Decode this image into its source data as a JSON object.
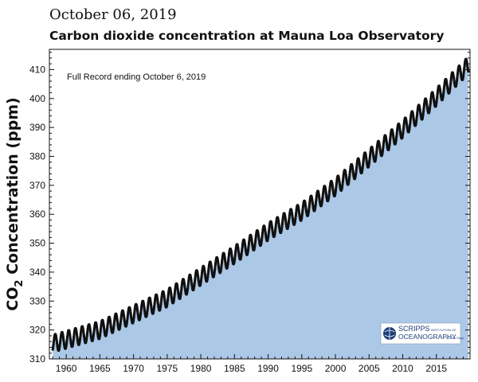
{
  "header": {
    "date": "October 06, 2019",
    "title": "Carbon dioxide concentration at Mauna Loa Observatory"
  },
  "chart_data": {
    "type": "area",
    "title": "Carbon dioxide concentration at Mauna Loa Observatory",
    "annotation": "Full Record ending October 6, 2019",
    "ylabel_parts": {
      "pre": "CO",
      "sub": "2",
      "post": " Concentration (ppm)"
    },
    "xlim": [
      1957.5,
      2020
    ],
    "ylim": [
      310,
      417
    ],
    "xticks": [
      "1960",
      "1965",
      "1970",
      "1975",
      "1980",
      "1985",
      "1990",
      "1995",
      "2000",
      "2005",
      "2010",
      "2015"
    ],
    "yticks": [
      "310",
      "320",
      "330",
      "340",
      "350",
      "360",
      "370",
      "380",
      "390",
      "400",
      "410"
    ],
    "grid": false,
    "fill_color": "#abc8e6",
    "point_color": "#111111",
    "trend_anchor_years": [
      1958,
      1965,
      1970,
      1975,
      1980,
      1985,
      1990,
      1995,
      2000,
      2005,
      2010,
      2015,
      2019.75
    ],
    "trend_anchor_ppm": [
      315.3,
      320.0,
      325.5,
      331.0,
      338.5,
      346.0,
      354.0,
      361.0,
      369.5,
      379.5,
      389.5,
      400.5,
      411.5
    ],
    "seasonal_amplitude_ppm": 3.0,
    "logo": {
      "line1": "SCRIPPS",
      "line1_small": "INSTITUTION OF",
      "line2": "OCEANOGRAPHY",
      "line2_small": "UC San Diego"
    },
    "colors": {
      "fill": "#abc8e6",
      "axis": "#111111",
      "logo": "#1d3f7a"
    }
  }
}
